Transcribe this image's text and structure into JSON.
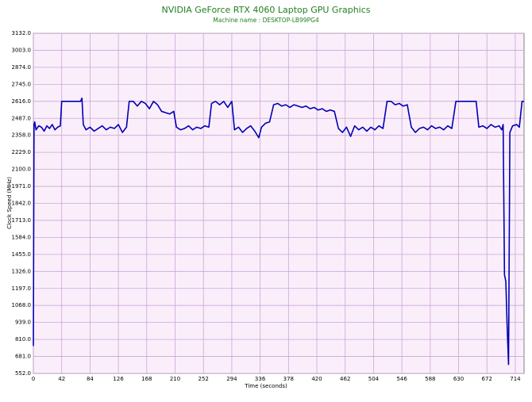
{
  "chart_data": {
    "type": "line",
    "title": "NVIDIA GeForce RTX 4060 Laptop GPU Graphics",
    "subtitle": "Machine name : DESKTOP-LB99PG4",
    "x_label": "Time (seconds)",
    "y_label": "Clock Speed (MHz)",
    "xlim": [
      0,
      727
    ],
    "ylim": [
      552,
      3132
    ],
    "xticks": [
      0,
      42,
      84,
      126,
      168,
      210,
      252,
      294,
      336,
      378,
      420,
      462,
      504,
      546,
      588,
      630,
      672,
      714
    ],
    "yticks": [
      {
        "value": 552,
        "label": "552.0"
      },
      {
        "value": 681,
        "label": "681.0"
      },
      {
        "value": 810,
        "label": "810.0"
      },
      {
        "value": 939,
        "label": "939.0"
      },
      {
        "value": 1068,
        "label": "1068.0"
      },
      {
        "value": 1197,
        "label": "1197.0"
      },
      {
        "value": 1326,
        "label": "1326.0"
      },
      {
        "value": 1455,
        "label": "1455.0"
      },
      {
        "value": 1584,
        "label": "1584.0"
      },
      {
        "value": 1713,
        "label": "1713.0"
      },
      {
        "value": 1842,
        "label": "1842.0"
      },
      {
        "value": 1971,
        "label": "1971.0"
      },
      {
        "value": 2100,
        "label": "2100.0"
      },
      {
        "value": 2229,
        "label": "2229.0"
      },
      {
        "value": 2358,
        "label": "2358.0"
      },
      {
        "value": 2487,
        "label": "2487.0"
      },
      {
        "value": 2616,
        "label": "2616.0"
      },
      {
        "value": 2745,
        "label": "2745.0"
      },
      {
        "value": 2874,
        "label": "2874.0"
      },
      {
        "value": 3003,
        "label": "3003.0"
      },
      {
        "value": 3132,
        "label": "3132.0"
      }
    ],
    "grid": true,
    "x": [
      0,
      1,
      2,
      4,
      8,
      12,
      16,
      20,
      24,
      28,
      32,
      36,
      40,
      42,
      48,
      54,
      60,
      66,
      70,
      72,
      74,
      78,
      84,
      90,
      96,
      102,
      108,
      114,
      120,
      126,
      132,
      138,
      142,
      148,
      154,
      160,
      166,
      172,
      178,
      184,
      190,
      196,
      202,
      208,
      212,
      218,
      224,
      230,
      236,
      242,
      248,
      254,
      260,
      264,
      270,
      276,
      282,
      288,
      294,
      298,
      304,
      310,
      316,
      322,
      328,
      334,
      338,
      344,
      350,
      356,
      362,
      368,
      374,
      380,
      386,
      392,
      398,
      404,
      410,
      416,
      422,
      428,
      434,
      440,
      446,
      452,
      458,
      464,
      470,
      476,
      482,
      488,
      494,
      500,
      506,
      512,
      518,
      524,
      530,
      536,
      542,
      548,
      554,
      560,
      566,
      572,
      578,
      584,
      590,
      596,
      602,
      608,
      614,
      620,
      626,
      632,
      638,
      644,
      650,
      656,
      660,
      666,
      672,
      678,
      684,
      690,
      694,
      696,
      698,
      700,
      702,
      704,
      706,
      710,
      716,
      720,
      724,
      727
    ],
    "series": [
      {
        "name": "Clock Speed",
        "color": "#0000b4",
        "values": [
          760,
          2440,
          2460,
          2400,
          2430,
          2420,
          2390,
          2430,
          2410,
          2440,
          2400,
          2420,
          2430,
          2616,
          2616,
          2616,
          2616,
          2616,
          2616,
          2640,
          2440,
          2400,
          2420,
          2390,
          2410,
          2430,
          2400,
          2420,
          2410,
          2440,
          2380,
          2420,
          2616,
          2616,
          2580,
          2616,
          2600,
          2560,
          2616,
          2590,
          2540,
          2530,
          2520,
          2540,
          2420,
          2400,
          2410,
          2430,
          2400,
          2420,
          2410,
          2430,
          2420,
          2600,
          2616,
          2590,
          2616,
          2570,
          2616,
          2400,
          2420,
          2380,
          2410,
          2430,
          2390,
          2340,
          2420,
          2450,
          2460,
          2590,
          2600,
          2580,
          2590,
          2570,
          2590,
          2580,
          2570,
          2580,
          2560,
          2570,
          2550,
          2560,
          2540,
          2550,
          2540,
          2410,
          2380,
          2420,
          2350,
          2430,
          2400,
          2420,
          2390,
          2420,
          2400,
          2430,
          2410,
          2616,
          2616,
          2590,
          2600,
          2580,
          2590,
          2420,
          2380,
          2410,
          2420,
          2400,
          2430,
          2410,
          2420,
          2400,
          2430,
          2410,
          2616,
          2616,
          2616,
          2616,
          2616,
          2616,
          2420,
          2430,
          2410,
          2440,
          2420,
          2430,
          2400,
          2440,
          1300,
          1250,
          900,
          620,
          2380,
          2430,
          2440,
          2420,
          2616,
          2616
        ]
      }
    ]
  }
}
